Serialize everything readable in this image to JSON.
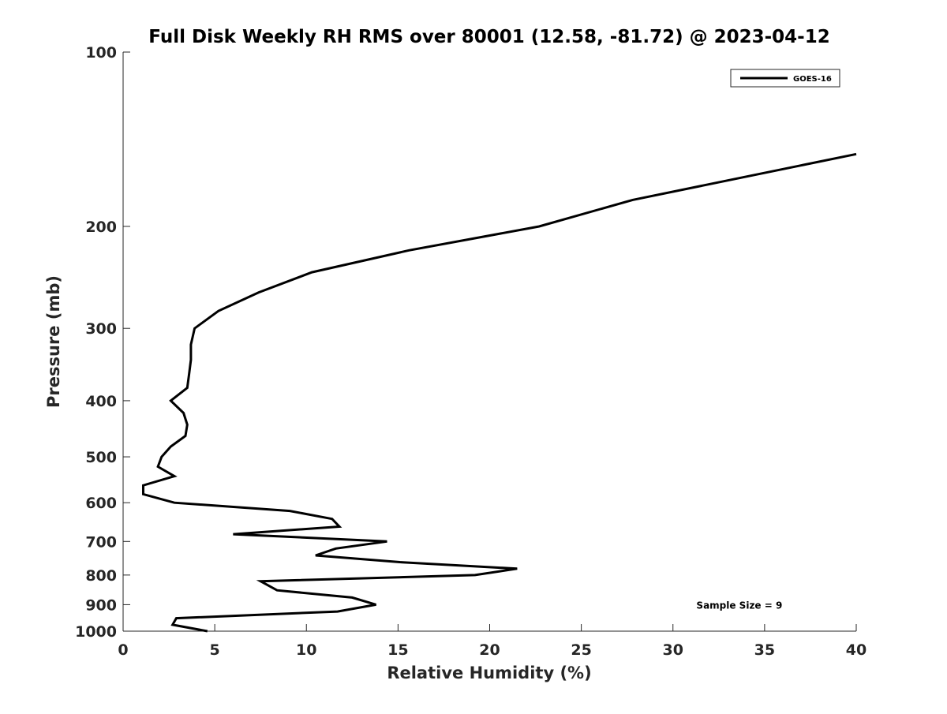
{
  "chart_data": {
    "type": "line",
    "title": "Full Disk Weekly RH RMS over 80001 (12.58, -81.72) @ 2023-04-12",
    "xlabel": "Relative Humidity (%)",
    "ylabel": "Pressure (mb)",
    "xlim": [
      0,
      40
    ],
    "ylim": [
      100,
      1000
    ],
    "yscale": "log",
    "y_reversed": true,
    "grid": false,
    "legend_placement": "top-right",
    "x_ticks": [
      0,
      5,
      10,
      15,
      20,
      25,
      30,
      35,
      40
    ],
    "x_tick_labels": [
      "0",
      "5",
      "10",
      "15",
      "20",
      "25",
      "30",
      "35",
      "40"
    ],
    "y_ticks": [
      100,
      200,
      300,
      400,
      500,
      600,
      700,
      800,
      900,
      1000
    ],
    "y_tick_labels": [
      "100",
      "200",
      "300",
      "400",
      "500",
      "600",
      "700",
      "800",
      "900",
      "1000"
    ],
    "series": [
      {
        "name": "GOES-16",
        "color": "#000000",
        "x": [
          40.0,
          27.8,
          22.7,
          15.6,
          10.3,
          7.4,
          5.2,
          3.9,
          3.7,
          3.7,
          3.6,
          3.5,
          2.6,
          3.3,
          3.5,
          3.4,
          2.6,
          2.1,
          1.9,
          2.8,
          1.1,
          1.1,
          2.8,
          9.1,
          11.4,
          11.8,
          6.0,
          14.4,
          11.6,
          10.5,
          15.1,
          21.5,
          19.2,
          7.5,
          8.4,
          12.5,
          13.8,
          11.7,
          2.9,
          2.7,
          4.6
        ],
        "y": [
          150,
          180,
          200,
          220,
          240,
          260,
          280,
          300,
          320,
          340,
          360,
          380,
          400,
          420,
          440,
          460,
          480,
          500,
          520,
          540,
          560,
          580,
          600,
          620,
          640,
          660,
          680,
          700,
          720,
          740,
          760,
          780,
          800,
          820,
          850,
          875,
          900,
          925,
          950,
          975,
          1000
        ]
      }
    ],
    "annotations": [
      {
        "text": "Sample Size = 9",
        "x": 35,
        "y": 900
      }
    ]
  }
}
